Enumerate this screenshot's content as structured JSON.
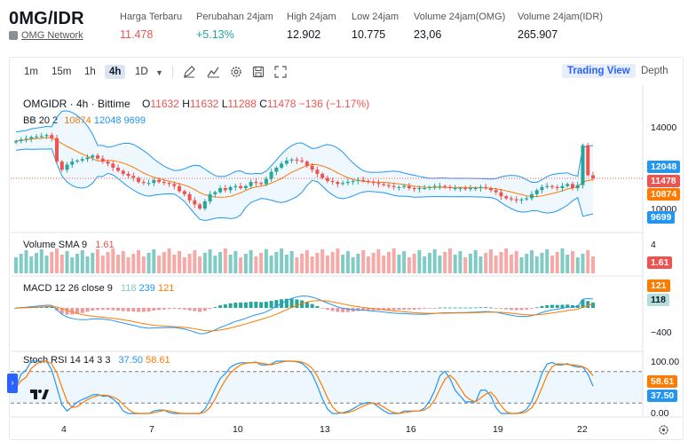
{
  "header": {
    "pair": "0MG/IDR",
    "network": "OMG Network",
    "stats": [
      {
        "label": "Harga Terbaru",
        "value": "11.478",
        "color": "#ef5350"
      },
      {
        "label": "Perubahan 24jam",
        "value": "+5.13%",
        "color": "#26a69a"
      },
      {
        "label": "High 24jam",
        "value": "12.902",
        "color": "#131722"
      },
      {
        "label": "Low 24jam",
        "value": "10.775",
        "color": "#131722"
      },
      {
        "label": "Volume 24jam(OMG)",
        "value": "23,06",
        "color": "#131722"
      },
      {
        "label": "Volume 24jam(IDR)",
        "value": "265.907",
        "color": "#131722"
      }
    ]
  },
  "toolbar": {
    "intervals": [
      "1m",
      "15m",
      "1h",
      "4h",
      "1D"
    ],
    "active_interval": "4h",
    "icons": [
      "chevron-down-icon",
      "draw-pencil-icon",
      "indicator-chart-icon",
      "gear-icon",
      "save-icon",
      "fullscreen-icon"
    ],
    "views": [
      "Trading View",
      "Depth"
    ],
    "active_view": "Trading View"
  },
  "legend": {
    "main": {
      "symbol": "OMGIDR · 4h · Bittime",
      "o_label": "O",
      "o": "11632",
      "h_label": "H",
      "h": "11632",
      "l_label": "L",
      "l": "11288",
      "c_label": "C",
      "c": "11478",
      "change": "−136 (−1.17%)"
    },
    "bb": {
      "label": "BB 20 2",
      "basis": "10874",
      "upper": "12048",
      "lower": "9699"
    },
    "volume": {
      "label": "Volume SMA 9",
      "value": "1.61"
    },
    "macd": {
      "label": "MACD 12 26 close 9",
      "hist": "118",
      "macd": "239",
      "signal": "121"
    },
    "stoch": {
      "label": "Stoch RSI 14 14 3 3",
      "k": "37.50",
      "d": "58.61"
    }
  },
  "price_axis": {
    "ticks": [
      "14000",
      "10000"
    ],
    "badges": [
      {
        "value": "12048",
        "color": "#2196f3"
      },
      {
        "value": "11478",
        "color": "#ef5350"
      },
      {
        "value": "10874",
        "color": "#ff7b00"
      },
      {
        "value": "9699",
        "color": "#2196f3"
      }
    ]
  },
  "volume_axis": {
    "ticks": [
      "4"
    ],
    "badge": "1.61",
    "badge_color": "#ef5350"
  },
  "macd_axis": {
    "ticks": [
      "400",
      "−400"
    ],
    "badges": [
      {
        "value": "121",
        "color": "#ff7b00"
      },
      {
        "value": "118",
        "color": "#b2dfdb"
      }
    ]
  },
  "stoch_axis": {
    "ticks": [
      "100.00",
      "0.00"
    ],
    "badges": [
      {
        "value": "58.61",
        "color": "#ff7b00"
      },
      {
        "value": "37.50",
        "color": "#2196f3"
      }
    ]
  },
  "time_axis": [
    "4",
    "7",
    "10",
    "13",
    "16",
    "19",
    "22"
  ],
  "colors": {
    "up": "#26a69a",
    "down": "#ef5350",
    "bb": "#2196f3",
    "basis": "#ff7b00",
    "accent": "#2962ff"
  },
  "chart_data": {
    "type": "candlestick",
    "x_labels": [
      "4",
      "7",
      "10",
      "13",
      "16",
      "19",
      "22"
    ],
    "last": {
      "open": 11632,
      "high": 11632,
      "low": 11288,
      "close": 11478
    },
    "close_series": [
      13300,
      13380,
      13420,
      13500,
      13520,
      13550,
      13600,
      13450,
      12300,
      11900,
      12150,
      12300,
      12350,
      12420,
      12500,
      12600,
      12450,
      12300,
      12200,
      12000,
      11850,
      11700,
      11600,
      11500,
      11300,
      11250,
      11250,
      11400,
      11300,
      11250,
      11200,
      11100,
      10850,
      10700,
      10400,
      10200,
      10000,
      10350,
      10700,
      10800,
      11000,
      10900,
      11050,
      11100,
      11000,
      11100,
      11300,
      11250,
      11200,
      11450,
      11800,
      12000,
      12200,
      12350,
      12400,
      12350,
      12300,
      12100,
      11900,
      11700,
      11500,
      11350,
      11300,
      11200,
      11250,
      11300,
      11350,
      11400,
      11350,
      11300,
      11250,
      11200,
      11150,
      11100,
      11050,
      11050,
      11100,
      11000,
      10950,
      11000,
      11000,
      11050,
      11100,
      11100,
      11050,
      11000,
      11000,
      11000,
      10950,
      11000,
      11000,
      11050,
      11000,
      10900,
      10800,
      10600,
      10500,
      10450,
      10400,
      10450,
      10500,
      10700,
      10900,
      11050,
      11100,
      11050,
      11000,
      11100,
      11200,
      11000,
      11150,
      13100,
      11632,
      11478
    ]
  }
}
